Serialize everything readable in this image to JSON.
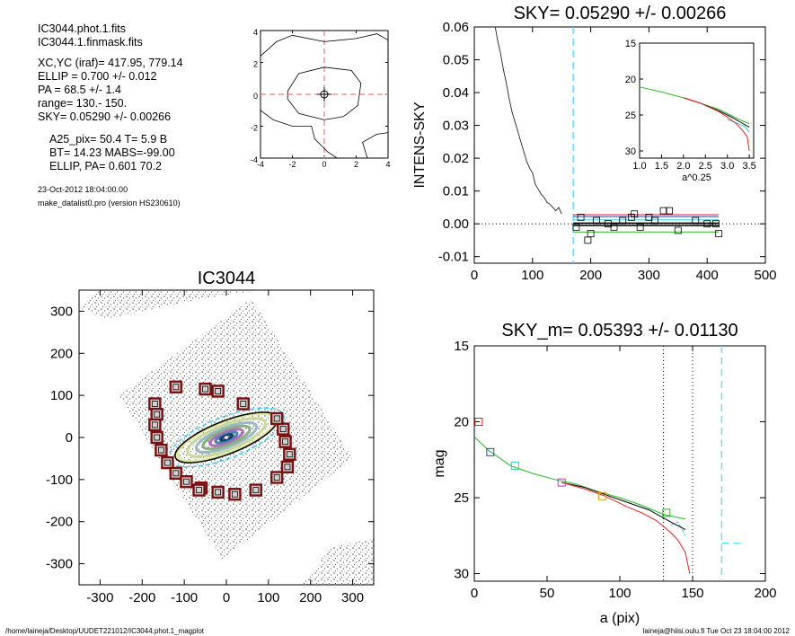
{
  "info": {
    "lines1": [
      "IC3044.phot.1.fits",
      "IC3044.1.finmask.fits"
    ],
    "lines2": [
      "XC,YC (iraf)=    417.95, 779.14",
      "ELLIP = 0.700 +/- 0.012",
      "PA     =  68.5 +/-   1.4",
      "range=  130.-  150.",
      "SKY= 0.05290 +/- 0.00266"
    ],
    "lines3": [
      "A25_pix= 50.4   T= 5.9  B",
      "BT=  14.23   MABS=-99.00",
      "ELLIP, PA= 0.601   70.2"
    ],
    "date": "23-Oct-2012 18:04:00.00",
    "program": "make_datalist0.pro (version HS230610)"
  },
  "footer": {
    "left": "/home/laineja/Desktop/UUDET221012/IC3044.phot.1_magplot",
    "right": "laineja@hiisi.oulu.fi  Tue Oct 23 18:04:00 2012"
  },
  "colors": {
    "axis": "#000000",
    "cyan_dash": "#66ddff",
    "red_dash": "#e06060",
    "red": "#e02020",
    "green": "#22bb22",
    "blue": "#2244cc",
    "magenta": "#bb33bb",
    "orange": "#dd9933",
    "maroon": "#7a1010"
  },
  "chart_data": [
    {
      "id": "contour",
      "type": "contour",
      "xlim": [
        -4,
        4
      ],
      "ylim": [
        -4,
        4
      ],
      "xticks": [
        -4,
        -2,
        0,
        2,
        4
      ],
      "yticks": [
        -4,
        -2,
        0,
        2,
        4
      ],
      "xtick_labels": [
        "-4",
        "-2",
        "0",
        "2",
        "4"
      ],
      "ytick_labels": [
        "-4",
        "-2",
        "0",
        "2",
        "4"
      ],
      "center": [
        0,
        0
      ],
      "contours": [
        [
          [
            -2.3,
            0.2
          ],
          [
            -1.6,
            1.3
          ],
          [
            0,
            1.7
          ],
          [
            1.7,
            1.5
          ],
          [
            2.3,
            0.7
          ],
          [
            2.1,
            -0.7
          ],
          [
            1.2,
            -1.4
          ],
          [
            0,
            -1.6
          ],
          [
            -1.6,
            -1.2
          ],
          [
            -2.3,
            -0.3
          ],
          [
            -2.3,
            0.2
          ]
        ],
        [
          [
            -4,
            2.4
          ],
          [
            -3,
            3.3
          ],
          [
            -2,
            3.7
          ],
          [
            0,
            3.3
          ],
          [
            2,
            3.5
          ],
          [
            3.3,
            3.8
          ],
          [
            4,
            3.4
          ]
        ],
        [
          [
            -4,
            -1.0
          ],
          [
            -3.2,
            -1.6
          ],
          [
            -2,
            -2.0
          ],
          [
            -0.8,
            -2.0
          ],
          [
            -0.6,
            -2.8
          ],
          [
            0.2,
            -3.6
          ],
          [
            0.8,
            -4
          ]
        ],
        [
          [
            2.7,
            -4
          ],
          [
            2.4,
            -3.0
          ],
          [
            3.3,
            -2.5
          ],
          [
            4,
            -2.4
          ]
        ]
      ]
    },
    {
      "id": "sky",
      "type": "line",
      "title": "SKY= 0.05290 +/- 0.00266",
      "ylabel": "INTENS-SKY",
      "xlim": [
        0,
        500
      ],
      "ylim": [
        -0.012,
        0.06
      ],
      "xticks": [
        0,
        100,
        200,
        300,
        400,
        500
      ],
      "yticks": [
        -0.01,
        0,
        0.01,
        0.02,
        0.03,
        0.04,
        0.05,
        0.06
      ],
      "xtick_labels": [
        "0",
        "100",
        "200",
        "300",
        "400",
        "500"
      ],
      "ytick_labels": [
        "-0.01",
        "0.00",
        "0.01",
        "0.02",
        "0.03",
        "0.04",
        "0.05",
        "0.06"
      ],
      "profile": [
        [
          36,
          0.06
        ],
        [
          40,
          0.056
        ],
        [
          45,
          0.052
        ],
        [
          50,
          0.047
        ],
        [
          55,
          0.043
        ],
        [
          60,
          0.038
        ],
        [
          65,
          0.034
        ],
        [
          70,
          0.031
        ],
        [
          75,
          0.028
        ],
        [
          80,
          0.025
        ],
        [
          85,
          0.022
        ],
        [
          90,
          0.019
        ],
        [
          95,
          0.017
        ],
        [
          100,
          0.0155
        ],
        [
          105,
          0.012
        ],
        [
          110,
          0.0105
        ],
        [
          115,
          0.009
        ],
        [
          120,
          0.008
        ],
        [
          125,
          0.0065
        ],
        [
          130,
          0.006
        ],
        [
          135,
          0.005
        ],
        [
          140,
          0.004
        ],
        [
          145,
          0.005
        ],
        [
          150,
          0.003
        ]
      ],
      "vline_x": 170,
      "hline_y": 0,
      "squares": [
        [
          175,
          -0.001
        ],
        [
          183,
          0.002
        ],
        [
          195,
          -0.005
        ],
        [
          200,
          -0.003
        ],
        [
          210,
          0.001
        ],
        [
          230,
          0
        ],
        [
          240,
          -0.001
        ],
        [
          255,
          0.001
        ],
        [
          270,
          0.002
        ],
        [
          275,
          0.003
        ],
        [
          285,
          -0.001
        ],
        [
          300,
          0.002
        ],
        [
          310,
          0.001
        ],
        [
          325,
          0.004
        ],
        [
          335,
          0.004
        ],
        [
          350,
          -0.002
        ],
        [
          380,
          0.001
        ],
        [
          400,
          0
        ],
        [
          415,
          0
        ],
        [
          420,
          -0.003
        ]
      ],
      "sky_lines": [
        {
          "color": "red",
          "y": 0.0028
        },
        {
          "color": "blue",
          "y": 0.0022
        },
        {
          "color": "cyan",
          "y": 0.0012
        },
        {
          "color": "black",
          "y": -0.0005
        },
        {
          "color": "black",
          "y": 0.0002
        },
        {
          "color": "green",
          "y": -0.0025
        }
      ],
      "sky_line_xrange": [
        170,
        420
      ],
      "inset": {
        "xlabel": "a^0.25",
        "xlim": [
          1.0,
          3.6
        ],
        "ylim": [
          15,
          31
        ],
        "xticks": [
          1.0,
          1.5,
          2.0,
          2.5,
          3.0,
          3.5
        ],
        "yticks": [
          15,
          20,
          25,
          30
        ],
        "xtick_labels": [
          "1.0",
          "1.5",
          "2.0",
          "2.5",
          "3.0",
          "3.5"
        ],
        "ytick_labels": [
          "15",
          "20",
          "25",
          "30"
        ],
        "green": [
          [
            1.0,
            21.1
          ],
          [
            1.5,
            21.8
          ],
          [
            2.0,
            22.6
          ],
          [
            2.4,
            23.4
          ],
          [
            2.8,
            24.2
          ],
          [
            3.1,
            25.1
          ],
          [
            3.3,
            25.7
          ],
          [
            3.5,
            26.2
          ]
        ],
        "black": [
          [
            2.0,
            22.6
          ],
          [
            2.4,
            23.4
          ],
          [
            2.8,
            24.4
          ],
          [
            3.1,
            25.3
          ],
          [
            3.3,
            26.0
          ],
          [
            3.5,
            26.7
          ]
        ],
        "red": [
          [
            2.0,
            22.6
          ],
          [
            2.4,
            23.4
          ],
          [
            2.8,
            24.5
          ],
          [
            3.0,
            25.3
          ],
          [
            3.2,
            26.2
          ],
          [
            3.35,
            27.2
          ],
          [
            3.45,
            28.0
          ],
          [
            3.5,
            30.0
          ]
        ],
        "cyan": [
          [
            3.0,
            25.6
          ],
          [
            3.2,
            26.1
          ],
          [
            3.4,
            26.6
          ],
          [
            3.5,
            27.4
          ]
        ]
      }
    },
    {
      "id": "image",
      "type": "image",
      "title": "IC3044",
      "xlim": [
        -350,
        350
      ],
      "ylim": [
        -350,
        350
      ],
      "xticks": [
        -300,
        -200,
        -100,
        0,
        100,
        200,
        300
      ],
      "yticks": [
        -300,
        -200,
        -100,
        0,
        100,
        200,
        300
      ],
      "xtick_labels": [
        "-300",
        "-200",
        "-100",
        "0",
        "100",
        "200",
        "300"
      ],
      "ytick_labels": [
        "-300",
        "-200",
        "-100",
        "0",
        "100",
        "200",
        "300"
      ],
      "ellipse": {
        "a": 130,
        "b": 39,
        "pa": 68.5
      },
      "mask_boxes": [
        [
          -120,
          120
        ],
        [
          -50,
          115
        ],
        [
          -20,
          110
        ],
        [
          40,
          80
        ],
        [
          -170,
          80
        ],
        [
          -165,
          55
        ],
        [
          -170,
          30
        ],
        [
          -165,
          0
        ],
        [
          -155,
          -30
        ],
        [
          -140,
          -60
        ],
        [
          -120,
          -85
        ],
        [
          -95,
          -105
        ],
        [
          -60,
          -120
        ],
        [
          -20,
          -130
        ],
        [
          20,
          -135
        ],
        [
          70,
          -125
        ],
        [
          120,
          -95
        ],
        [
          145,
          -70
        ],
        [
          150,
          -40
        ],
        [
          140,
          -10
        ],
        [
          135,
          20
        ],
        [
          120,
          45
        ],
        [
          -65,
          -125
        ]
      ]
    },
    {
      "id": "mag",
      "type": "line",
      "title": "SKY_m=  0.05393 +/- 0.01130",
      "xlabel": "a (pix)",
      "ylabel": "mag",
      "xlim": [
        0,
        200
      ],
      "ylim": [
        15,
        30.5
      ],
      "xticks": [
        0,
        50,
        100,
        150,
        200
      ],
      "yticks": [
        15,
        20,
        25,
        30
      ],
      "xtick_labels": [
        "0",
        "50",
        "100",
        "150",
        "200"
      ],
      "ytick_labels": [
        "15",
        "20",
        "25",
        "30"
      ],
      "vlines_dotted": [
        130,
        150
      ],
      "vline_dash": 170,
      "cyan_segment": [
        [
          170,
          28
        ],
        [
          185,
          28
        ]
      ],
      "green": [
        [
          0,
          21.0
        ],
        [
          10,
          21.9
        ],
        [
          25,
          22.9
        ],
        [
          40,
          23.4
        ],
        [
          55,
          23.8
        ],
        [
          70,
          24.1
        ],
        [
          85,
          24.6
        ],
        [
          100,
          25.0
        ],
        [
          115,
          25.5
        ],
        [
          130,
          26.1
        ],
        [
          145,
          26.4
        ]
      ],
      "black": [
        [
          60,
          24.0
        ],
        [
          75,
          24.3
        ],
        [
          90,
          24.8
        ],
        [
          105,
          25.3
        ],
        [
          120,
          25.8
        ],
        [
          135,
          26.6
        ],
        [
          145,
          27.1
        ]
      ],
      "red": [
        [
          60,
          24.0
        ],
        [
          75,
          24.4
        ],
        [
          90,
          24.9
        ],
        [
          105,
          25.6
        ],
        [
          115,
          26.0
        ],
        [
          125,
          26.5
        ],
        [
          135,
          27.3
        ],
        [
          140,
          27.8
        ],
        [
          145,
          28.6
        ],
        [
          148,
          30.0
        ]
      ],
      "cyan": [
        [
          135,
          26.8
        ],
        [
          140,
          26.6
        ],
        [
          145,
          27.5
        ]
      ],
      "markers": [
        [
          3,
          20.0,
          "red"
        ],
        [
          11,
          22.0,
          "blue"
        ],
        [
          28,
          22.9,
          "cyan"
        ],
        [
          60,
          24.0,
          "magenta"
        ],
        [
          88,
          24.9,
          "orange"
        ],
        [
          132,
          26.0,
          "green"
        ]
      ]
    }
  ]
}
